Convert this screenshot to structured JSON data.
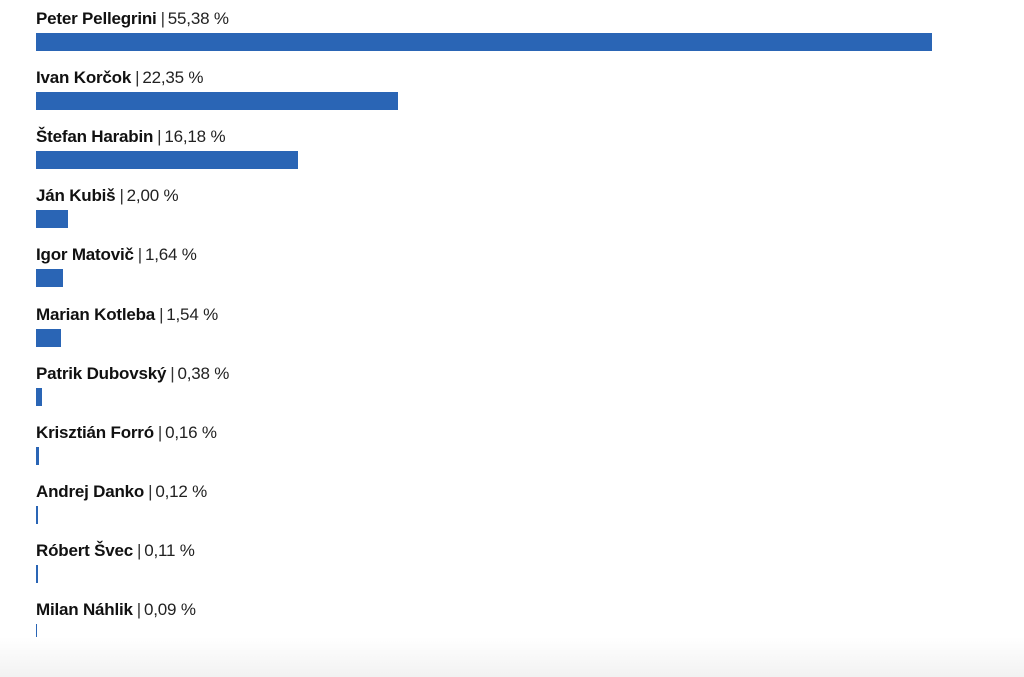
{
  "chart_data": {
    "type": "bar",
    "orientation": "horizontal",
    "bar_color": "#2a65b5",
    "unit": "%",
    "xlim": [
      0,
      55.38
    ],
    "categories": [
      "Peter Pellegrini",
      "Ivan Korčok",
      "Štefan Harabin",
      "Ján Kubiš",
      "Igor Matovič",
      "Marian Kotleba",
      "Patrik Dubovský",
      "Krisztián Forró",
      "Andrej Danko",
      "Róbert Švec",
      "Milan Náhlik"
    ],
    "values": [
      55.38,
      22.35,
      16.18,
      2.0,
      1.64,
      1.54,
      0.38,
      0.16,
      0.12,
      0.11,
      0.09
    ],
    "value_labels": [
      "55,38 %",
      "22,35 %",
      "16,18 %",
      "2,00 %",
      "1,64 %",
      "1,54 %",
      "0,38 %",
      "0,16 %",
      "0,12 %",
      "0,11 %",
      "0,09 %"
    ],
    "separator": "|"
  }
}
